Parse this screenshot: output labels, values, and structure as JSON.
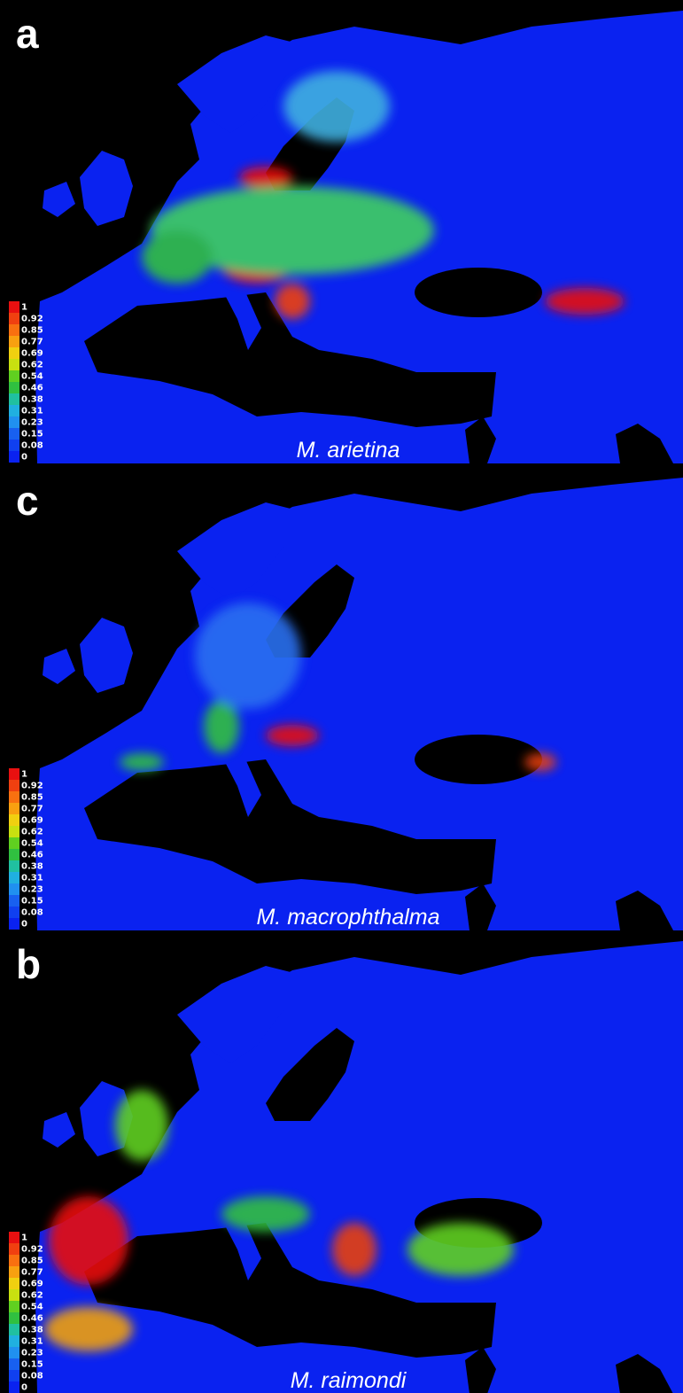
{
  "panels": [
    {
      "letter": "a",
      "species": "M. arietina"
    },
    {
      "letter": "c",
      "species": "M. macrophthalma"
    },
    {
      "letter": "b",
      "species": "M. raimondi"
    }
  ],
  "legend": {
    "labels": [
      "1",
      "0.92",
      "0.85",
      "0.77",
      "0.69",
      "0.62",
      "0.54",
      "0.46",
      "0.38",
      "0.31",
      "0.23",
      "0.15",
      "0.08",
      "0"
    ]
  }
}
